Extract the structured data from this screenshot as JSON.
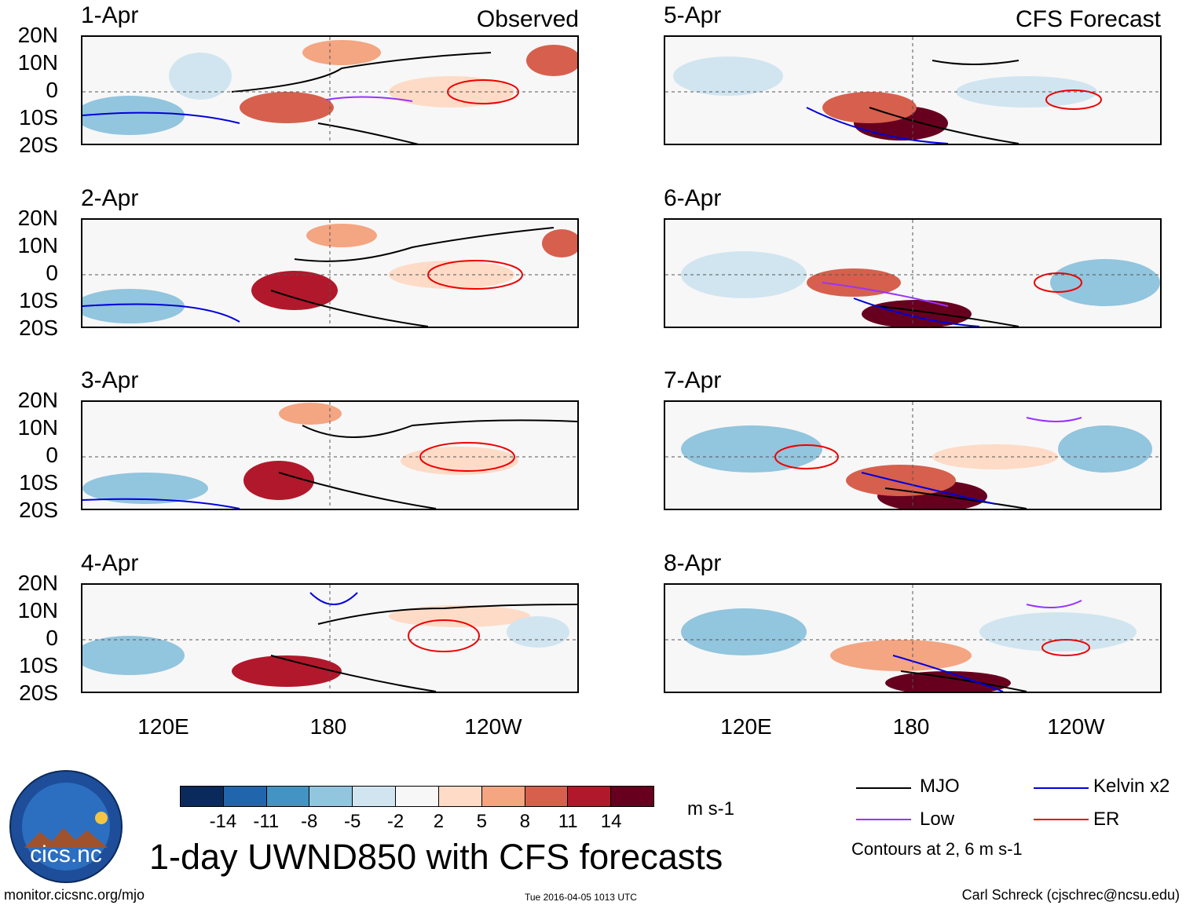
{
  "panels": [
    {
      "date": "1-Apr",
      "source": "Observed"
    },
    {
      "date": "2-Apr"
    },
    {
      "date": "3-Apr"
    },
    {
      "date": "4-Apr"
    },
    {
      "date": "5-Apr",
      "source": "CFS Forecast"
    },
    {
      "date": "6-Apr"
    },
    {
      "date": "7-Apr"
    },
    {
      "date": "8-Apr"
    }
  ],
  "lat_labels": [
    "20N",
    "10N",
    "0",
    "10S",
    "20S"
  ],
  "lon_labels": [
    "120E",
    "180",
    "120W"
  ],
  "colorbar": {
    "labels": [
      "-14",
      "-11",
      "-8",
      "-5",
      "-2",
      "2",
      "5",
      "8",
      "11",
      "14"
    ],
    "colors": [
      "#0b2a5c",
      "#2166ac",
      "#4393c3",
      "#92c5de",
      "#d1e5f0",
      "#f7f7f7",
      "#fddbc7",
      "#f4a582",
      "#d6604d",
      "#b2182b",
      "#67001f"
    ],
    "units": "m s-1"
  },
  "title": "1-day UWND850 with CFS forecasts",
  "legend": [
    {
      "label": "MJO",
      "color": "#000000"
    },
    {
      "label": "Low",
      "color": "#9933ff"
    },
    {
      "label": "Kelvin x2",
      "color": "#0000dd"
    },
    {
      "label": "ER",
      "color": "#ee0000"
    }
  ],
  "contour_note": "Contours at 2, 6 m s-1",
  "logo": {
    "text": "cics.nc",
    "arc": "Cooperative Institute for Climate and Satellites"
  },
  "footer": {
    "site": "monitor.cicsnc.org/mjo",
    "timestamp": "Tue 2016-04-05 1013 UTC",
    "credit": "Carl Schreck (cjschrec@ncsu.edu)"
  }
}
